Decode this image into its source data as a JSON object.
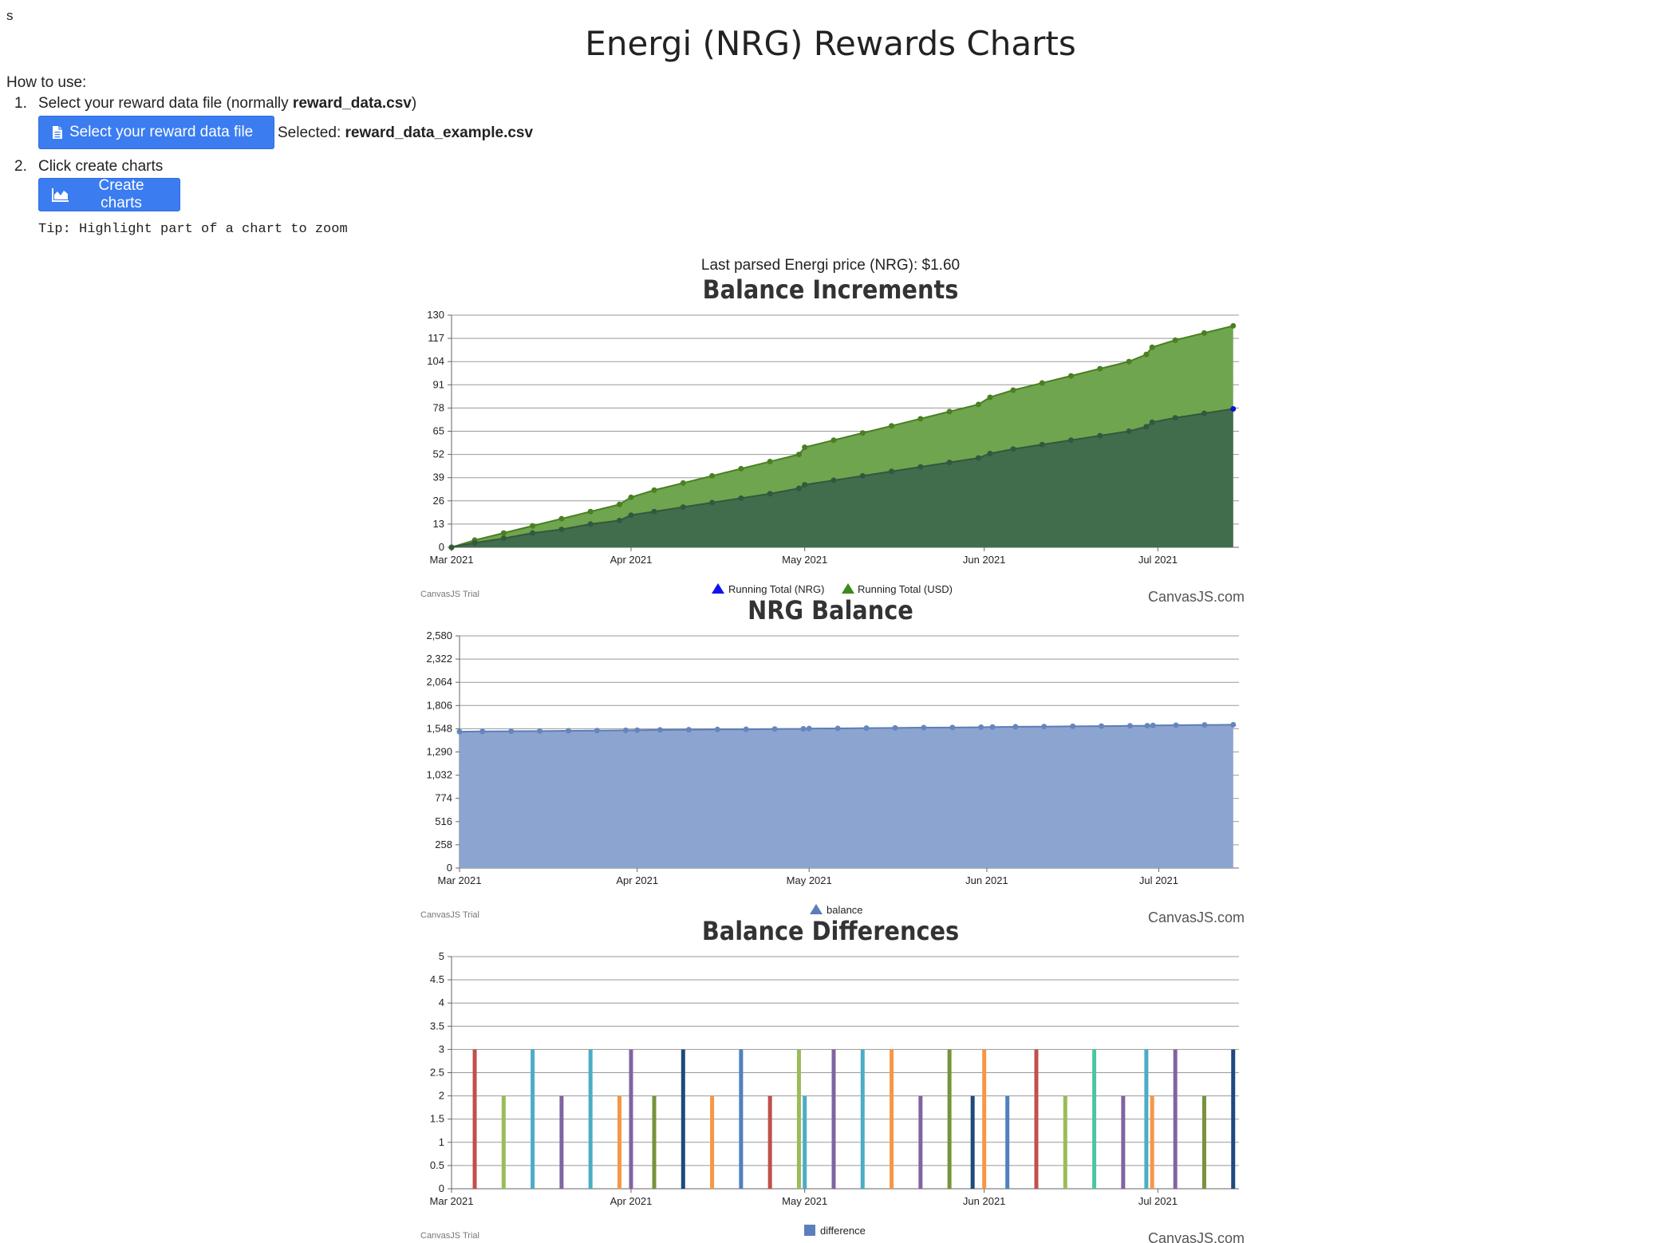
{
  "page": {
    "stray_text": "s",
    "title": "Energi (NRG) Rewards Charts",
    "how_to_use": "How to use:",
    "steps": [
      {
        "num": "1.",
        "text_prefix": "Select your reward data file (normally ",
        "text_bold": "reward_data.csv",
        "text_suffix": ")"
      },
      {
        "num": "2.",
        "text": "Click create charts"
      }
    ],
    "select_button": {
      "label": "Select your reward data file",
      "icon": "file-icon"
    },
    "selected": {
      "label": "Selected:",
      "filename": "reward_data_example.csv"
    },
    "create_button": {
      "label": "Create charts",
      "icon": "area-chart-icon"
    },
    "tip": "Tip: Highlight part of a chart to zoom",
    "price": "Last parsed Energi price (NRG): $1.60",
    "canvas_trial": "CanvasJS Trial",
    "canvas_credit": "CanvasJS.com"
  },
  "chart_data": [
    {
      "type": "area",
      "title": "Balance Increments",
      "x_ticks": [
        "Mar 2021",
        "Apr 2021",
        "May 2021",
        "Jun 2021",
        "Jul 2021"
      ],
      "x_tick_days": [
        0,
        31,
        61,
        92,
        122
      ],
      "x_range_days": [
        0,
        136
      ],
      "y_ticks": [
        "0",
        "13",
        "26",
        "39",
        "52",
        "65",
        "78",
        "91",
        "104",
        "117",
        "130"
      ],
      "ylim": [
        0,
        130
      ],
      "grid": true,
      "legend_placement": "bottom-center",
      "colors": {
        "usd_fill": "#6fa54e",
        "usd_line": "#4a7f22",
        "nrg_fill": "#416d4d",
        "nrg_line": "#33583e",
        "nrg_marker": "#0b18c8",
        "usd_marker_legend": "#3d8a1d",
        "nrg_marker_legend": "#1111ee"
      },
      "series": [
        {
          "name": "Running Total (NRG)",
          "x": [
            0,
            4,
            9,
            14,
            19,
            24,
            29,
            31,
            35,
            40,
            45,
            50,
            55,
            60,
            61,
            66,
            71,
            76,
            81,
            86,
            91,
            93,
            97,
            102,
            107,
            112,
            117,
            120,
            121,
            125,
            130,
            135
          ],
          "y": [
            0,
            2.5,
            5,
            8,
            10,
            13,
            15,
            18,
            20,
            22.5,
            25,
            27.5,
            30,
            33,
            35,
            37.5,
            40,
            42.5,
            45,
            47.5,
            50,
            52.5,
            55,
            57.5,
            60,
            62.5,
            65,
            67.5,
            70,
            72.5,
            75,
            77.5
          ]
        },
        {
          "name": "Running Total (USD)",
          "x": [
            0,
            4,
            9,
            14,
            19,
            24,
            29,
            31,
            35,
            40,
            45,
            50,
            55,
            60,
            61,
            66,
            71,
            76,
            81,
            86,
            91,
            93,
            97,
            102,
            107,
            112,
            117,
            120,
            121,
            125,
            130,
            135
          ],
          "y": [
            0,
            4,
            8,
            12,
            16,
            20,
            24,
            28,
            32,
            36,
            40,
            44,
            48,
            52,
            56,
            60,
            64,
            68,
            72,
            76,
            80,
            84,
            88,
            92,
            96,
            100,
            104,
            108,
            112,
            116,
            120,
            124
          ]
        }
      ]
    },
    {
      "type": "area",
      "title": "NRG Balance",
      "x_ticks": [
        "Mar 2021",
        "Apr 2021",
        "May 2021",
        "Jun 2021",
        "Jul 2021"
      ],
      "x_tick_days": [
        0,
        31,
        61,
        92,
        122
      ],
      "x_range_days": [
        0,
        136
      ],
      "y_ticks": [
        "0",
        "258",
        "516",
        "774",
        "1,032",
        "1,290",
        "1,548",
        "1,806",
        "2,064",
        "2,322",
        "2,580"
      ],
      "ylim": [
        0,
        2580
      ],
      "grid": true,
      "legend_placement": "bottom-center",
      "colors": {
        "fill": "#8ca4d0",
        "line": "#5d7db8",
        "marker": "#6685bd"
      },
      "series": [
        {
          "name": "balance",
          "x": [
            0,
            4,
            9,
            14,
            19,
            24,
            29,
            31,
            35,
            40,
            45,
            50,
            55,
            60,
            61,
            66,
            71,
            76,
            81,
            86,
            91,
            93,
            97,
            102,
            107,
            112,
            117,
            120,
            121,
            125,
            130,
            135
          ],
          "y": [
            1515,
            1518,
            1520,
            1522,
            1525,
            1527,
            1530,
            1532,
            1535,
            1537,
            1540,
            1542,
            1545,
            1547,
            1550,
            1552,
            1555,
            1557,
            1560,
            1562,
            1565,
            1567,
            1570,
            1572,
            1575,
            1577,
            1580,
            1582,
            1585,
            1587,
            1590,
            1592
          ]
        }
      ]
    },
    {
      "type": "bar",
      "title": "Balance Differences",
      "x_ticks": [
        "Mar 2021",
        "Apr 2021",
        "May 2021",
        "Jun 2021",
        "Jul 2021"
      ],
      "x_tick_days": [
        0,
        31,
        61,
        92,
        122
      ],
      "x_range_days": [
        0,
        136
      ],
      "y_ticks": [
        "0",
        "0.5",
        "1",
        "1.5",
        "2",
        "2.5",
        "3",
        "3.5",
        "4",
        "4.5",
        "5"
      ],
      "ylim": [
        0,
        5
      ],
      "grid": true,
      "legend_placement": "bottom-center",
      "colors": {
        "legend": "#5b7fbe"
      },
      "series": [
        {
          "name": "difference",
          "x": [
            4,
            9,
            14,
            19,
            24,
            29,
            31,
            35,
            40,
            45,
            50,
            55,
            60,
            61,
            66,
            71,
            76,
            81,
            86,
            90,
            92,
            96,
            101,
            106,
            111,
            116,
            120,
            121,
            125,
            130,
            135
          ],
          "y": [
            3,
            2,
            3,
            2,
            3,
            2,
            3,
            2,
            3,
            2,
            3,
            2,
            3,
            2,
            3,
            3,
            3,
            2,
            3,
            2,
            3,
            2,
            3,
            2,
            3,
            2,
            3,
            2,
            3,
            2,
            3
          ],
          "colors": [
            "#c0504d",
            "#9bbb59",
            "#4bacc6",
            "#8064a2",
            "#4bacc6",
            "#f79646",
            "#8064a2",
            "#77933c",
            "#1f497d",
            "#f79646",
            "#4f81bd",
            "#c0504d",
            "#9bbb59",
            "#4bacc6",
            "#8064a2",
            "#4bacc6",
            "#f79646",
            "#8064a2",
            "#77933c",
            "#1f497d",
            "#f79646",
            "#4f81bd",
            "#c0504d",
            "#9bbb59",
            "#4bc6a4",
            "#8064a2",
            "#4bacc6",
            "#f79646",
            "#8064a2",
            "#77933c",
            "#1f497d"
          ]
        }
      ]
    }
  ]
}
